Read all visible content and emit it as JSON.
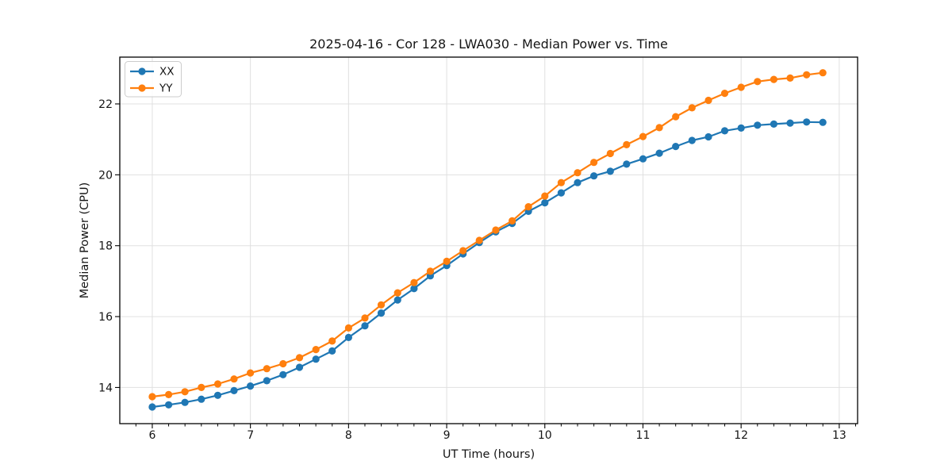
{
  "figure": {
    "background": "#ffffff"
  },
  "chart_data": {
    "type": "line",
    "title": "2025-04-16 - Cor 128 - LWA030 - Median Power vs. Time",
    "xlabel": "UT Time (hours)",
    "ylabel": "Median Power (CPU)",
    "xlim": [
      5.669,
      13.187
    ],
    "ylim": [
      12.98,
      23.32
    ],
    "xticks": [
      6,
      7,
      8,
      9,
      10,
      11,
      12,
      13
    ],
    "yticks": [
      14,
      16,
      18,
      20,
      22
    ],
    "x_minor_tick_step": 0.1667,
    "grid": "major-both",
    "grid_color": "#e0e0e0",
    "legend_position": "upper-left",
    "marker": "circle",
    "x": [
      6.0,
      6.167,
      6.333,
      6.5,
      6.667,
      6.833,
      7.0,
      7.167,
      7.333,
      7.5,
      7.667,
      7.833,
      8.0,
      8.167,
      8.333,
      8.5,
      8.667,
      8.833,
      9.0,
      9.167,
      9.333,
      9.5,
      9.667,
      9.833,
      10.0,
      10.167,
      10.333,
      10.5,
      10.667,
      10.833,
      11.0,
      11.167,
      11.333,
      11.5,
      11.667,
      11.833,
      12.0,
      12.167,
      12.333,
      12.5,
      12.667,
      12.833
    ],
    "series": [
      {
        "name": "XX",
        "color": "#1f77b4",
        "values": [
          13.45,
          13.51,
          13.58,
          13.67,
          13.78,
          13.91,
          14.04,
          14.19,
          14.36,
          14.57,
          14.8,
          15.03,
          15.41,
          15.74,
          16.1,
          16.47,
          16.79,
          17.15,
          17.44,
          17.77,
          18.09,
          18.39,
          18.63,
          18.97,
          19.21,
          19.49,
          19.78,
          19.97,
          20.1,
          20.3,
          20.45,
          20.61,
          20.8,
          20.97,
          21.07,
          21.24,
          21.32,
          21.4,
          21.43,
          21.46,
          21.49,
          21.48
        ]
      },
      {
        "name": "YY",
        "color": "#ff7f0e",
        "values": [
          13.74,
          13.8,
          13.88,
          14.0,
          14.1,
          14.24,
          14.41,
          14.53,
          14.67,
          14.84,
          15.07,
          15.31,
          15.68,
          15.96,
          16.33,
          16.67,
          16.96,
          17.28,
          17.56,
          17.86,
          18.15,
          18.44,
          18.7,
          19.1,
          19.4,
          19.78,
          20.06,
          20.35,
          20.6,
          20.85,
          21.08,
          21.33,
          21.64,
          21.89,
          22.1,
          22.3,
          22.47,
          22.63,
          22.69,
          22.73,
          22.82,
          22.88
        ]
      }
    ]
  }
}
